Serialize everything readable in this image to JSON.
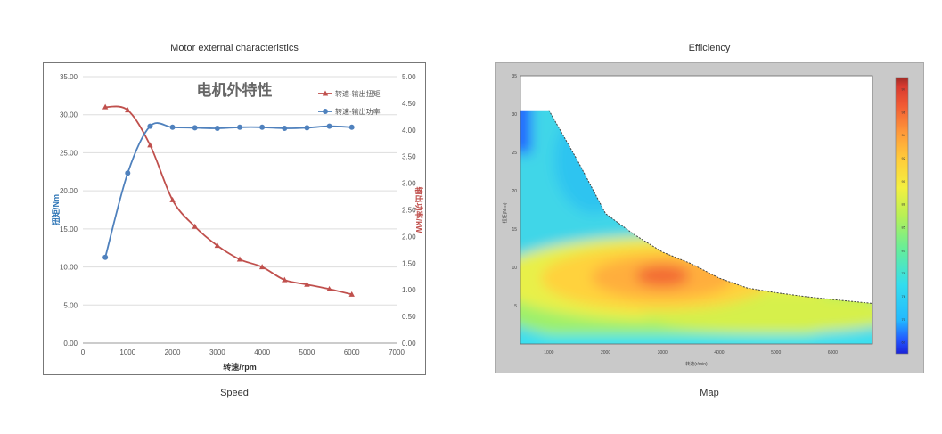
{
  "left_panel": {
    "caption_top": "Motor external characteristics",
    "caption_bottom": "Speed"
  },
  "right_panel": {
    "caption_top": "Efficiency",
    "caption_bottom": "Map"
  },
  "chart_data": [
    {
      "type": "line",
      "title": "电机外特性",
      "xlabel": "转速/rpm",
      "ylabel": "扭矩/Nm",
      "y2label": "输出功率/kW",
      "xlim": [
        0,
        7000
      ],
      "ylim": [
        0,
        35
      ],
      "y2lim": [
        0,
        5
      ],
      "xticks": [
        "0",
        "1000",
        "2000",
        "3000",
        "4000",
        "5000",
        "6000",
        "7000"
      ],
      "yticks": [
        "0.00",
        "5.00",
        "10.00",
        "15.00",
        "20.00",
        "25.00",
        "30.00",
        "35.00"
      ],
      "y2ticks": [
        "0.00",
        "0.50",
        "1.00",
        "1.50",
        "2.00",
        "2.50",
        "3.00",
        "3.50",
        "4.00",
        "4.50",
        "5.00"
      ],
      "grid": "horizontal",
      "legend_position": "top-right",
      "series": [
        {
          "name": "转速-输出扭矩",
          "axis": "left",
          "color": "#c0504d",
          "marker": "triangle",
          "x": [
            500,
            1000,
            1500,
            2000,
            2500,
            3000,
            3500,
            4000,
            4500,
            5000,
            5500,
            6000
          ],
          "values": [
            31.0,
            30.6,
            26.0,
            18.8,
            15.3,
            12.8,
            11.0,
            10.0,
            8.3,
            7.7,
            7.1,
            6.4
          ]
        },
        {
          "name": "转速-输出功率",
          "axis": "right",
          "color": "#4f81bd",
          "marker": "circle",
          "x": [
            500,
            1000,
            1500,
            2000,
            2500,
            3000,
            3500,
            4000,
            4500,
            5000,
            5500,
            6000
          ],
          "values": [
            1.61,
            3.19,
            4.07,
            4.05,
            4.04,
            4.03,
            4.05,
            4.05,
            4.03,
            4.04,
            4.07,
            4.05
          ]
        }
      ]
    },
    {
      "type": "heatmap",
      "title": "",
      "xlabel": "转速(r/min)",
      "ylabel": "扭矩(N·m)",
      "xlim": [
        500,
        6700
      ],
      "ylim": [
        0,
        35
      ],
      "xticks": [
        "1000",
        "2000",
        "3000",
        "4000",
        "5000",
        "6000"
      ],
      "yticks": [
        "5",
        "10",
        "15",
        "20",
        "25",
        "30",
        "35"
      ],
      "colorbar_ticks": [
        "60",
        "70",
        "76",
        "79",
        "82",
        "85",
        "88",
        "90",
        "92",
        "94",
        "96",
        "97"
      ],
      "colorbar_range": [
        60,
        97
      ],
      "peak_region": {
        "speed": 3000,
        "torque": 9,
        "efficiency": 96
      }
    }
  ]
}
